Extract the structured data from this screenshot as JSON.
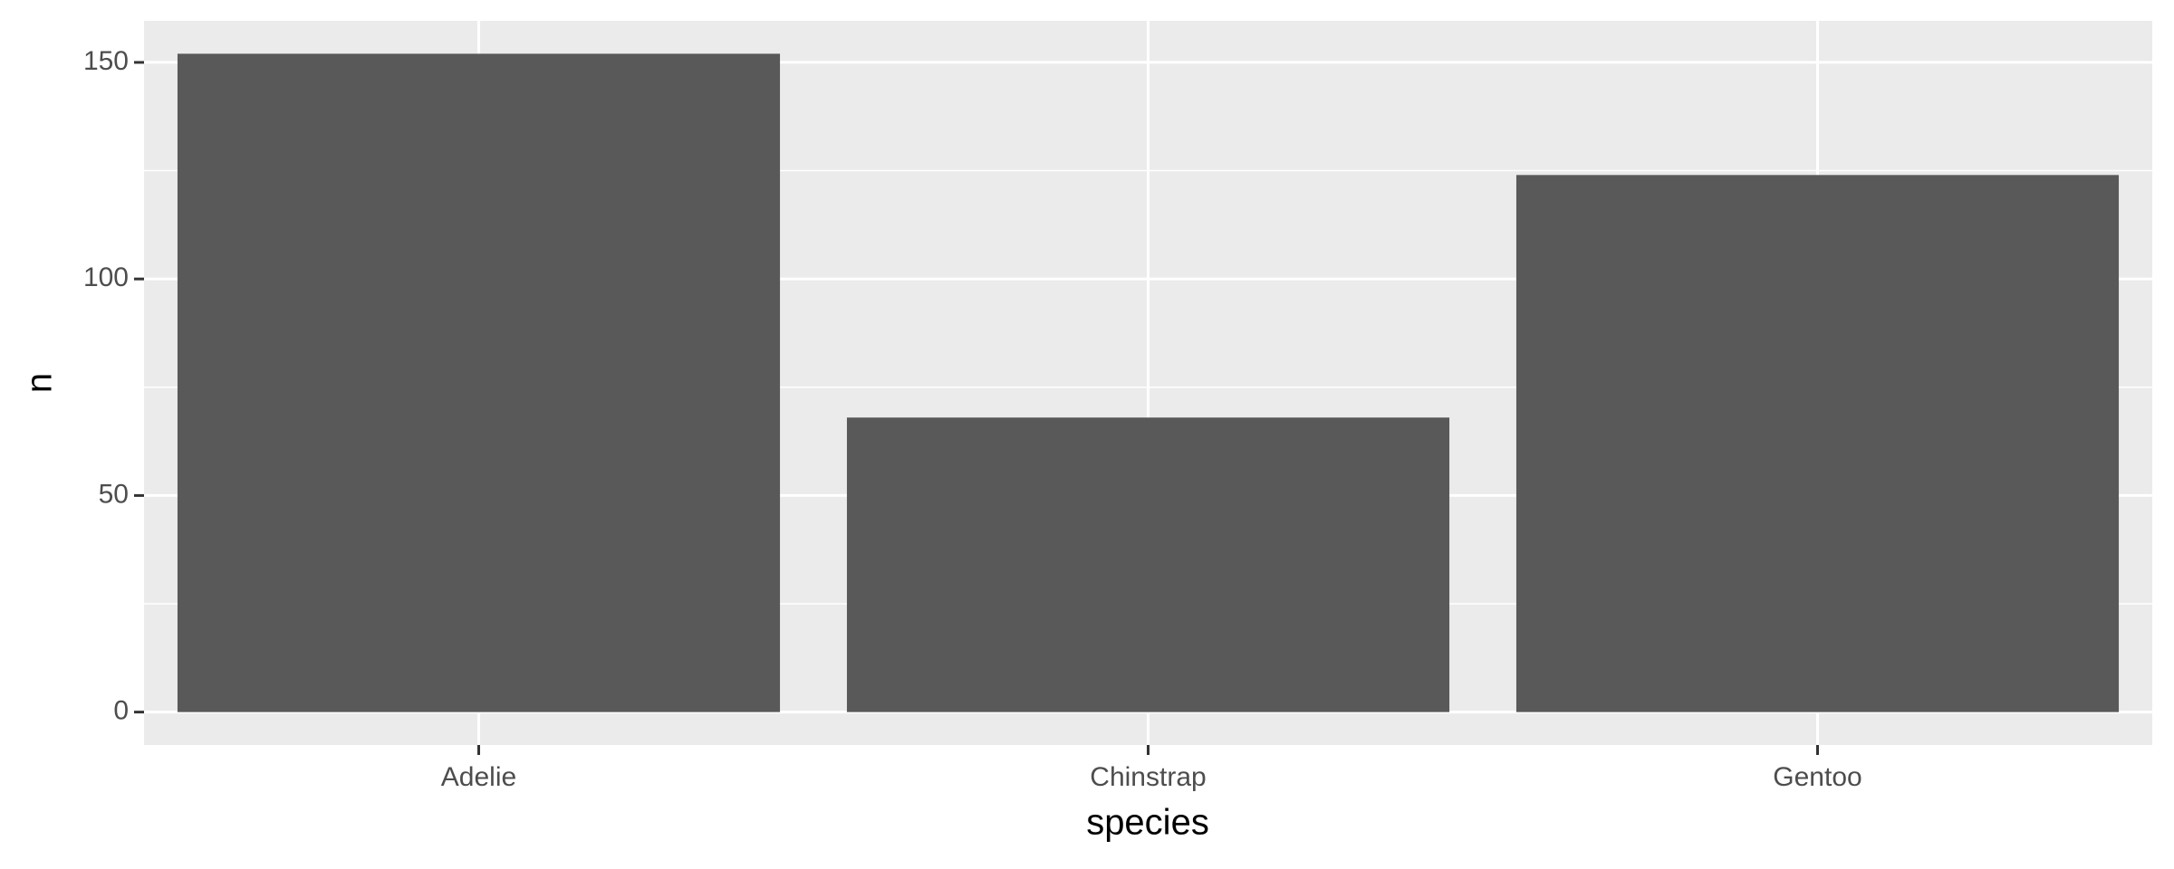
{
  "chart_data": {
    "type": "bar",
    "x_label": "species",
    "y_label": "n",
    "categories": [
      "Adelie",
      "Chinstrap",
      "Gentoo"
    ],
    "values": [
      152,
      68,
      124
    ],
    "color": "#595959",
    "ylim": [
      -7.6,
      159.6
    ],
    "yticks": [
      0,
      50,
      100,
      150
    ],
    "minor_yticks": [
      25,
      75,
      125
    ],
    "grid": true
  }
}
